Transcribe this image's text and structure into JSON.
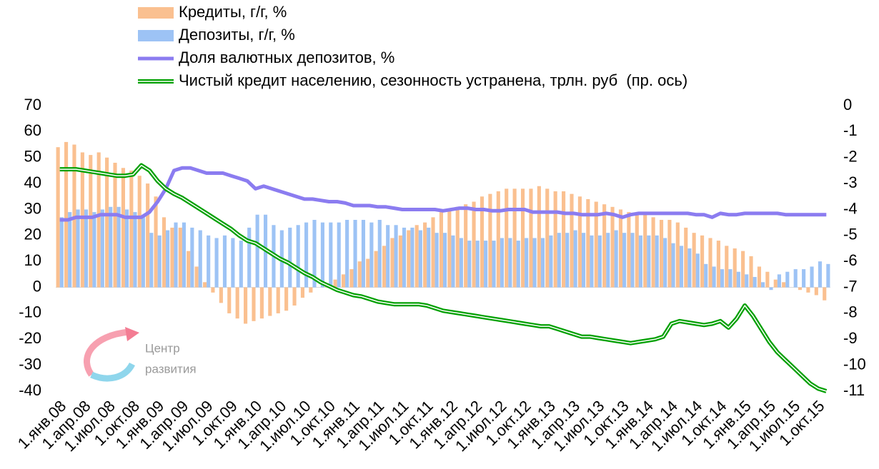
{
  "chart_data": {
    "type": "bar-line",
    "watermark": [
      "Центр",
      "развития"
    ],
    "categories": [
      "1.янв.08",
      null,
      null,
      "1.апр.08",
      null,
      null,
      "1.июл.08",
      null,
      null,
      "1.окт.08",
      null,
      null,
      "1.янв.09",
      null,
      null,
      "1.апр.09",
      null,
      null,
      "1.июл.09",
      null,
      null,
      "1.окт.09",
      null,
      null,
      "1.янв.10",
      null,
      null,
      "1.апр.10",
      null,
      null,
      "1.июл.10",
      null,
      null,
      "1.окт.10",
      null,
      null,
      "1.янв.11",
      null,
      null,
      "1.апр.11",
      null,
      null,
      "1.июл.11",
      null,
      null,
      "1.окт.11",
      null,
      null,
      "1.янв.12",
      null,
      null,
      "1.апр.12",
      null,
      null,
      "1.июл.12",
      null,
      null,
      "1.окт.12",
      null,
      null,
      "1.янв.13",
      null,
      null,
      "1.апр.13",
      null,
      null,
      "1.июл.13",
      null,
      null,
      "1.окт.13",
      null,
      null,
      "1.янв.14",
      null,
      null,
      "1.апр.14",
      null,
      null,
      "1.июл.14",
      null,
      null,
      "1.окт.14",
      null,
      null,
      "1.янв.15",
      null,
      null,
      "1.апр.15",
      null,
      null,
      "1.июл.15",
      null,
      null,
      "1.окт.15",
      null
    ],
    "series": [
      {
        "name": "Кредиты, г/г, %",
        "kind": "bar",
        "color": "#fac090",
        "values": [
          54,
          56,
          55,
          52,
          51,
          52,
          50,
          48,
          46,
          45,
          43,
          40,
          35,
          27,
          23,
          23,
          14,
          8,
          2,
          -2,
          -6,
          -10,
          -12,
          -14,
          -13,
          -12,
          -11,
          -10,
          -9,
          -7,
          -4,
          -2,
          0,
          1,
          3,
          5,
          7,
          10,
          11,
          14,
          16,
          19,
          20,
          22,
          24,
          25,
          27,
          29,
          30,
          31,
          32,
          33,
          35,
          36,
          37,
          38,
          38,
          38,
          38,
          39,
          38,
          37,
          37,
          36,
          35,
          34,
          33,
          32,
          31,
          30,
          29,
          28,
          28,
          27,
          26,
          26,
          25,
          23,
          21,
          20,
          19,
          18,
          16,
          15,
          14,
          12,
          8,
          6,
          3,
          2,
          0,
          -1,
          -2,
          -3,
          -5
        ]
      },
      {
        "name": "Депозиты, г/г, %",
        "kind": "bar",
        "color": "#9dc3f5",
        "values": [
          27,
          29,
          30,
          30,
          29,
          30,
          31,
          31,
          30,
          29,
          28,
          21,
          20,
          22,
          25,
          25,
          23,
          22,
          20,
          19,
          20,
          19,
          18,
          23,
          28,
          28,
          24,
          22,
          23,
          24,
          25,
          26,
          25,
          25,
          25,
          26,
          26,
          26,
          25,
          26,
          24,
          24,
          23,
          23,
          22,
          23,
          21,
          21,
          20,
          19,
          18,
          18,
          18,
          18,
          19,
          19,
          18,
          19,
          19,
          19,
          20,
          21,
          21,
          22,
          21,
          20,
          20,
          21,
          22,
          21,
          21,
          20,
          20,
          20,
          19,
          17,
          16,
          15,
          13,
          9,
          8,
          7,
          7,
          6,
          5,
          4,
          2,
          -1,
          5,
          6,
          7,
          7,
          8,
          10,
          9
        ]
      },
      {
        "name": "Доля валютных депозитов, %",
        "kind": "line",
        "color": "#8b7cf0",
        "values": [
          26,
          26,
          27,
          27,
          27,
          28,
          28,
          28,
          27,
          27,
          27,
          29,
          33,
          38,
          45,
          46,
          46,
          45,
          44,
          44,
          44,
          43,
          42,
          41,
          38,
          39,
          38,
          37,
          36,
          35,
          34,
          34,
          33.5,
          33,
          33,
          32.5,
          31.5,
          31.5,
          31.5,
          31,
          31,
          30.5,
          30,
          30,
          30,
          30,
          30,
          29.5,
          30,
          30.5,
          30.5,
          30,
          30,
          29.5,
          29.5,
          30,
          30,
          30,
          29,
          29,
          29,
          29,
          28.5,
          28.5,
          28,
          28,
          28,
          28.5,
          28,
          27,
          28,
          28.5,
          28.5,
          28.5,
          28.5,
          28.5,
          28.5,
          28.5,
          28,
          28,
          27,
          28.5,
          28,
          28,
          28.5,
          28.5,
          28.5,
          28.5,
          28.5,
          28,
          28,
          28,
          28,
          28,
          28
        ]
      },
      {
        "name": "Чистый кредит населению, сезонность устранена, трлн. руб  (пр. ось)",
        "kind": "line2",
        "axis": "y2",
        "color": "#00a000",
        "values": [
          -2.45,
          -2.45,
          -2.45,
          -2.5,
          -2.55,
          -2.6,
          -2.65,
          -2.7,
          -2.7,
          -2.65,
          -2.3,
          -2.5,
          -2.9,
          -3.2,
          -3.4,
          -3.55,
          -3.75,
          -3.95,
          -4.15,
          -4.35,
          -4.55,
          -4.75,
          -5.0,
          -5.2,
          -5.3,
          -5.5,
          -5.7,
          -5.9,
          -6.05,
          -6.25,
          -6.45,
          -6.6,
          -6.8,
          -6.95,
          -7.1,
          -7.2,
          -7.3,
          -7.35,
          -7.45,
          -7.55,
          -7.6,
          -7.65,
          -7.65,
          -7.65,
          -7.65,
          -7.7,
          -7.8,
          -7.9,
          -7.95,
          -8.0,
          -8.05,
          -8.1,
          -8.15,
          -8.2,
          -8.25,
          -8.3,
          -8.35,
          -8.4,
          -8.45,
          -8.5,
          -8.5,
          -8.6,
          -8.7,
          -8.8,
          -8.9,
          -8.9,
          -8.95,
          -9.0,
          -9.05,
          -9.1,
          -9.15,
          -9.1,
          -9.05,
          -9.0,
          -8.9,
          -8.4,
          -8.3,
          -8.35,
          -8.4,
          -8.45,
          -8.4,
          -8.3,
          -8.55,
          -8.2,
          -7.7,
          -8.1,
          -8.6,
          -9.1,
          -9.5,
          -9.8,
          -10.1,
          -10.4,
          -10.7,
          -10.9,
          -11.0
        ]
      }
    ],
    "ylim": [
      -40,
      70
    ],
    "yticks": [
      -40,
      -30,
      -20,
      -10,
      0,
      10,
      20,
      30,
      40,
      50,
      60,
      70
    ],
    "y2lim": [
      -11,
      0
    ],
    "y2ticks": [
      -11,
      -10,
      -9,
      -8,
      -7,
      -6,
      -5,
      -4,
      -3,
      -2,
      -1,
      0
    ]
  }
}
